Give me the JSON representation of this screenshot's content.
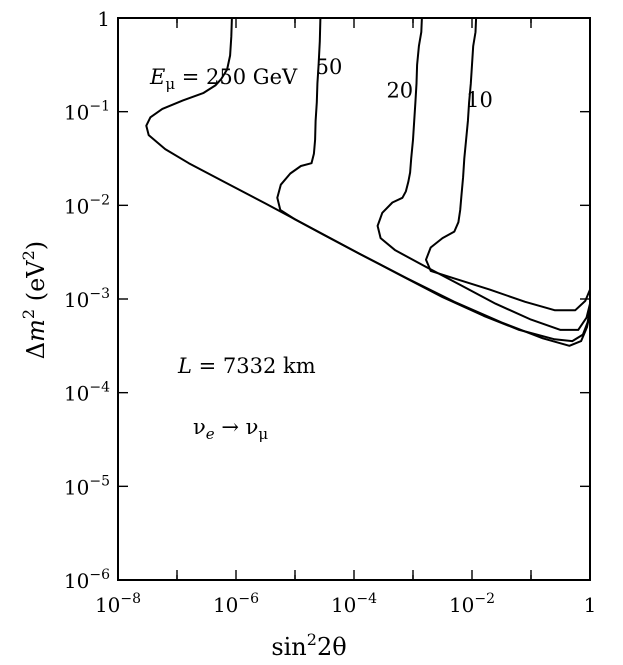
{
  "chart_data": {
    "type": "line",
    "title": "",
    "xscale": "log10",
    "yscale": "log10",
    "xlim_exp": [
      -8,
      0
    ],
    "ylim_exp": [
      -6,
      0
    ],
    "xlabel": {
      "base": "sin",
      "sup": "2",
      "tail": "2θ"
    },
    "ylabel": {
      "pre": "Δ",
      "var": "m",
      "sup": "2",
      "mid": "  (eV",
      "sup2": "2",
      "end": ")"
    },
    "x_ticks": [
      {
        "exp": -8,
        "base": "10",
        "sup": "−8"
      },
      {
        "exp": -6,
        "base": "10",
        "sup": "−6"
      },
      {
        "exp": -4,
        "base": "10",
        "sup": "−4"
      },
      {
        "exp": -2,
        "base": "10",
        "sup": "−2"
      },
      {
        "exp": 0,
        "base": "1",
        "sup": ""
      }
    ],
    "y_ticks": [
      {
        "exp": -6,
        "base": "10",
        "sup": "−6"
      },
      {
        "exp": -5,
        "base": "10",
        "sup": "−5"
      },
      {
        "exp": -4,
        "base": "10",
        "sup": "−4"
      },
      {
        "exp": -3,
        "base": "10",
        "sup": "−3"
      },
      {
        "exp": -2,
        "base": "10",
        "sup": "−2"
      },
      {
        "exp": -1,
        "base": "10",
        "sup": "−1"
      },
      {
        "exp": 0,
        "base": "1",
        "sup": ""
      }
    ],
    "annotations": {
      "emu_label": {
        "var": "E",
        "sub": "μ",
        "rest": " = 250 GeV"
      },
      "baseline": {
        "var": "L",
        "rest": " = 7332 km"
      },
      "channel": {
        "a": "ν",
        "a_sub": "e",
        "arrow": " → ",
        "b": "ν",
        "b_sub": "μ"
      }
    },
    "series": [
      {
        "name": "250",
        "label": "",
        "points": [
          [
            -6.07,
            0.0
          ],
          [
            -6.08,
            -0.2
          ],
          [
            -6.1,
            -0.4
          ],
          [
            -6.15,
            -0.55
          ],
          [
            -6.25,
            -0.65
          ],
          [
            -6.35,
            -0.72
          ],
          [
            -6.55,
            -0.8
          ],
          [
            -6.9,
            -0.88
          ],
          [
            -7.25,
            -0.97
          ],
          [
            -7.45,
            -1.06
          ],
          [
            -7.52,
            -1.15
          ],
          [
            -7.48,
            -1.25
          ],
          [
            -7.2,
            -1.4
          ],
          [
            -6.8,
            -1.55
          ],
          [
            -6.2,
            -1.75
          ],
          [
            -5.5,
            -1.98
          ],
          [
            -4.7,
            -2.25
          ],
          [
            -3.9,
            -2.52
          ],
          [
            -3.1,
            -2.78
          ],
          [
            -2.3,
            -3.03
          ],
          [
            -1.5,
            -3.25
          ],
          [
            -0.8,
            -3.42
          ],
          [
            -0.35,
            -3.5
          ],
          [
            -0.15,
            -3.45
          ],
          [
            -0.05,
            -3.3
          ],
          [
            0.0,
            -3.15
          ]
        ]
      },
      {
        "name": "50",
        "label": "50",
        "label_at": [
          -4.65,
          -0.6
        ],
        "points": [
          [
            -4.57,
            0.0
          ],
          [
            -4.58,
            -0.25
          ],
          [
            -4.6,
            -0.5
          ],
          [
            -4.62,
            -0.7
          ],
          [
            -4.63,
            -0.9
          ],
          [
            -4.65,
            -1.1
          ],
          [
            -4.66,
            -1.3
          ],
          [
            -4.68,
            -1.45
          ],
          [
            -4.72,
            -1.55
          ],
          [
            -4.9,
            -1.58
          ],
          [
            -5.08,
            -1.66
          ],
          [
            -5.24,
            -1.78
          ],
          [
            -5.3,
            -1.92
          ],
          [
            -5.25,
            -2.05
          ],
          [
            -5.0,
            -2.15
          ],
          [
            -4.5,
            -2.32
          ],
          [
            -3.9,
            -2.52
          ],
          [
            -3.2,
            -2.75
          ],
          [
            -2.5,
            -2.98
          ],
          [
            -1.8,
            -3.18
          ],
          [
            -1.2,
            -3.33
          ],
          [
            -0.6,
            -3.43
          ],
          [
            -0.3,
            -3.45
          ],
          [
            -0.12,
            -3.38
          ],
          [
            -0.04,
            -3.25
          ],
          [
            0.0,
            -3.1
          ]
        ]
      },
      {
        "name": "20",
        "label": "20",
        "label_at": [
          -3.45,
          -0.85
        ],
        "points": [
          [
            -2.85,
            0.0
          ],
          [
            -2.86,
            -0.15
          ],
          [
            -2.9,
            -0.3
          ],
          [
            -2.93,
            -0.5
          ],
          [
            -2.94,
            -0.7
          ],
          [
            -2.96,
            -0.9
          ],
          [
            -2.98,
            -1.1
          ],
          [
            -3.0,
            -1.3
          ],
          [
            -3.03,
            -1.5
          ],
          [
            -3.05,
            -1.65
          ],
          [
            -3.08,
            -1.75
          ],
          [
            -3.12,
            -1.85
          ],
          [
            -3.18,
            -1.92
          ],
          [
            -3.35,
            -1.97
          ],
          [
            -3.52,
            -2.08
          ],
          [
            -3.6,
            -2.22
          ],
          [
            -3.55,
            -2.35
          ],
          [
            -3.3,
            -2.48
          ],
          [
            -2.8,
            -2.65
          ],
          [
            -2.2,
            -2.85
          ],
          [
            -1.6,
            -3.05
          ],
          [
            -1.0,
            -3.22
          ],
          [
            -0.5,
            -3.33
          ],
          [
            -0.2,
            -3.33
          ],
          [
            -0.06,
            -3.2
          ],
          [
            0.0,
            -3.05
          ]
        ]
      },
      {
        "name": "10",
        "label": "10",
        "label_at": [
          -2.1,
          -0.95
        ],
        "points": [
          [
            -1.93,
            0.0
          ],
          [
            -1.94,
            -0.15
          ],
          [
            -1.98,
            -0.3
          ],
          [
            -2.0,
            -0.5
          ],
          [
            -2.02,
            -0.7
          ],
          [
            -2.05,
            -0.9
          ],
          [
            -2.07,
            -1.1
          ],
          [
            -2.1,
            -1.3
          ],
          [
            -2.13,
            -1.5
          ],
          [
            -2.15,
            -1.7
          ],
          [
            -2.18,
            -1.9
          ],
          [
            -2.2,
            -2.05
          ],
          [
            -2.23,
            -2.18
          ],
          [
            -2.3,
            -2.28
          ],
          [
            -2.5,
            -2.35
          ],
          [
            -2.7,
            -2.45
          ],
          [
            -2.78,
            -2.58
          ],
          [
            -2.7,
            -2.7
          ],
          [
            -2.3,
            -2.78
          ],
          [
            -1.7,
            -2.9
          ],
          [
            -1.1,
            -3.03
          ],
          [
            -0.6,
            -3.12
          ],
          [
            -0.25,
            -3.12
          ],
          [
            -0.08,
            -3.02
          ],
          [
            0.0,
            -2.9
          ]
        ]
      }
    ]
  }
}
